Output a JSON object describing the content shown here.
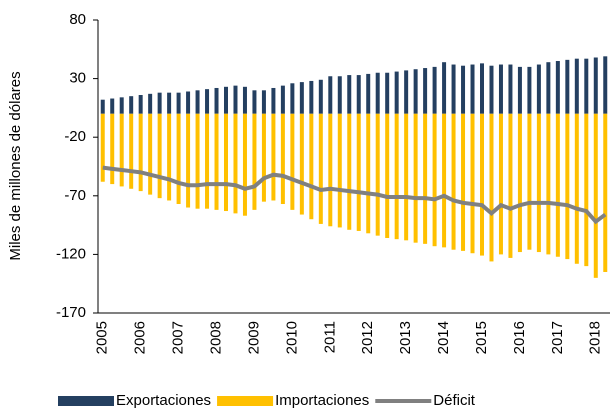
{
  "chart_data": {
    "type": "bar",
    "y_axis_label": "Miles de millones de dólares",
    "categories": [
      "2005",
      null,
      null,
      null,
      "2006",
      null,
      null,
      null,
      "2007",
      null,
      null,
      null,
      "2008",
      null,
      null,
      null,
      "2009",
      null,
      null,
      null,
      "2010",
      null,
      null,
      null,
      "2011",
      null,
      null,
      null,
      "2012",
      null,
      null,
      null,
      "2013",
      null,
      null,
      null,
      "2014",
      null,
      null,
      null,
      "2015",
      null,
      null,
      null,
      "2016",
      null,
      null,
      null,
      "2017",
      null,
      null,
      null,
      "2018",
      null
    ],
    "series": [
      {
        "name": "Exportaciones",
        "type": "bar",
        "color": "#243f60",
        "values": [
          12,
          13,
          14,
          15,
          16,
          17,
          18,
          18,
          18,
          19,
          20,
          21,
          22,
          23,
          24,
          23,
          20,
          20,
          22,
          24,
          26,
          27,
          28,
          29,
          32,
          32,
          33,
          33,
          34,
          35,
          35,
          36,
          37,
          38,
          39,
          40,
          44,
          42,
          41,
          42,
          43,
          41,
          42,
          42,
          40,
          40,
          42,
          44,
          45,
          46,
          47,
          47,
          48,
          49
        ]
      },
      {
        "name": "Importaciones",
        "type": "bar",
        "color": "#ffc000",
        "values": [
          -58,
          -60,
          -62,
          -64,
          -66,
          -69,
          -72,
          -74,
          -77,
          -80,
          -81,
          -81,
          -82,
          -83,
          -85,
          -87,
          -82,
          -75,
          -74,
          -77,
          -82,
          -86,
          -90,
          -94,
          -96,
          -97,
          -99,
          -100,
          -102,
          -104,
          -106,
          -107,
          -108,
          -110,
          -111,
          -113,
          -114,
          -116,
          -117,
          -119,
          -121,
          -126,
          -120,
          -123,
          -118,
          -116,
          -118,
          -120,
          -122,
          -124,
          -128,
          -130,
          -140,
          -135
        ]
      },
      {
        "name": "Déficit",
        "type": "line",
        "color": "#808080",
        "values": [
          -46,
          -47,
          -48,
          -49,
          -50,
          -52,
          -54,
          -56,
          -59,
          -61,
          -61,
          -60,
          -60,
          -60,
          -61,
          -64,
          -62,
          -55,
          -52,
          -53,
          -56,
          -59,
          -62,
          -65,
          -64,
          -65,
          -66,
          -67,
          -68,
          -69,
          -71,
          -71,
          -71,
          -72,
          -72,
          -73,
          -70,
          -74,
          -76,
          -77,
          -78,
          -85,
          -78,
          -81,
          -78,
          -76,
          -76,
          -76,
          -77,
          -78,
          -81,
          -83,
          -92,
          -86
        ]
      }
    ],
    "ylim": [
      -170,
      80
    ],
    "yticks": [
      -170,
      -120,
      -70,
      -20,
      30,
      80
    ],
    "legend": "bottom"
  }
}
